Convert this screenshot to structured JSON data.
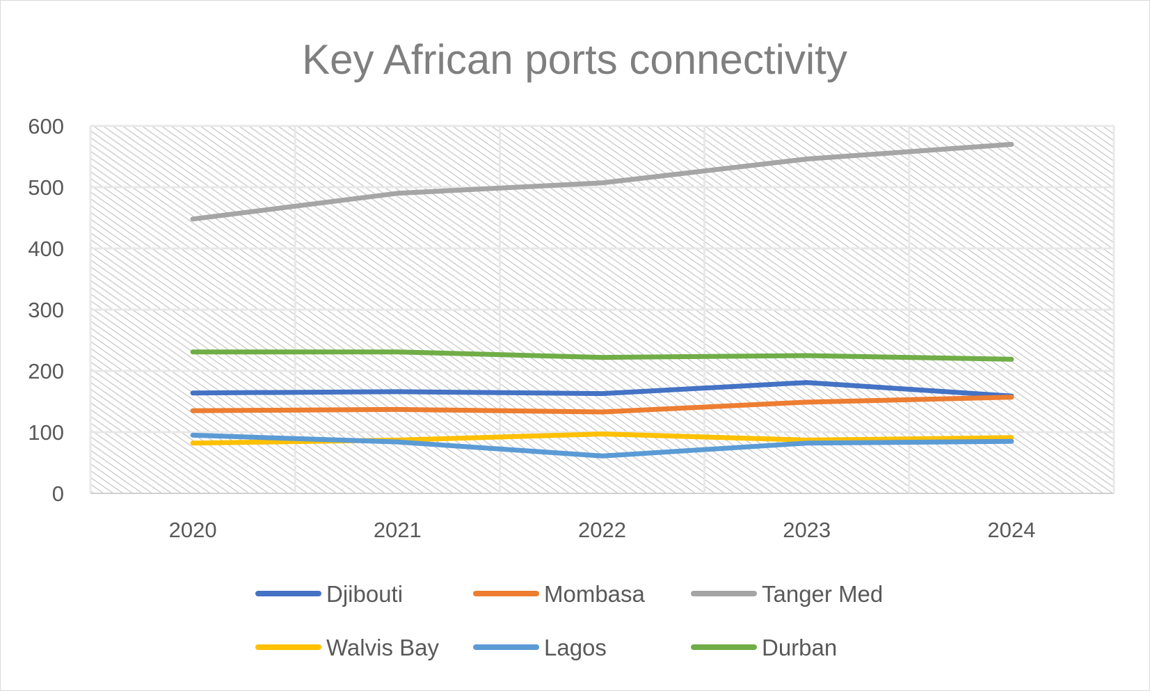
{
  "chart_data": {
    "type": "line",
    "title": "Key African ports connectivity",
    "xlabel": "",
    "ylabel": "",
    "categories": [
      "2020",
      "2021",
      "2022",
      "2023",
      "2024"
    ],
    "ylim": [
      0,
      600
    ],
    "yticks": [
      0,
      100,
      200,
      300,
      400,
      500,
      600
    ],
    "grid": true,
    "legend_position": "bottom",
    "series": [
      {
        "name": "Djibouti",
        "color": "#4472c4",
        "values": [
          164,
          166,
          163,
          181,
          159
        ]
      },
      {
        "name": "Mombasa",
        "color": "#ed7d31",
        "values": [
          135,
          137,
          133,
          149,
          157
        ]
      },
      {
        "name": "Tanger Med",
        "color": "#a5a5a5",
        "values": [
          448,
          490,
          507,
          546,
          570
        ]
      },
      {
        "name": "Walvis Bay",
        "color": "#ffc000",
        "values": [
          82,
          87,
          97,
          87,
          91
        ]
      },
      {
        "name": "Lagos",
        "color": "#5b9bd5",
        "values": [
          95,
          84,
          61,
          82,
          85
        ]
      },
      {
        "name": "Durban",
        "color": "#70ad47",
        "values": [
          231,
          231,
          222,
          225,
          219
        ]
      }
    ]
  }
}
